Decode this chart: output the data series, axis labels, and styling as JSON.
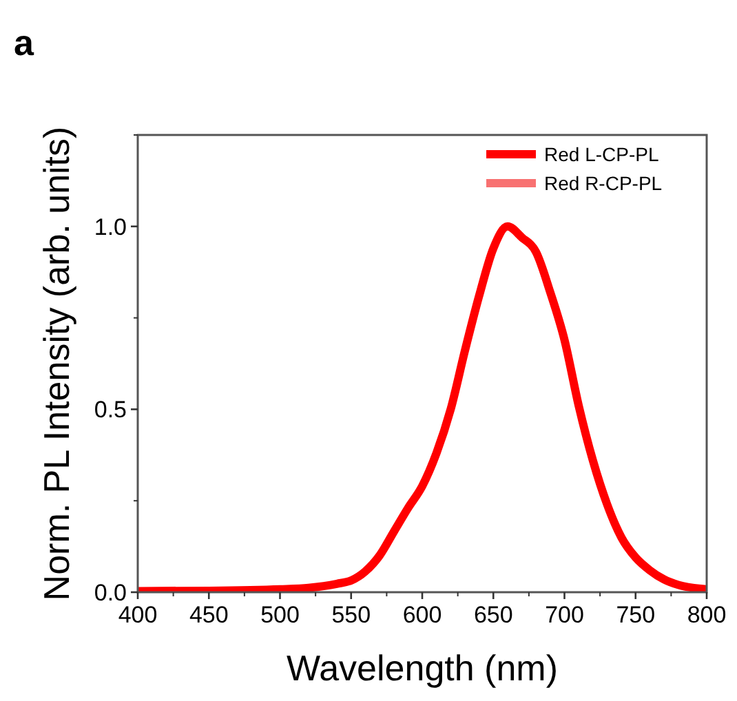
{
  "chart_data": {
    "type": "line",
    "title": "a",
    "xlabel": "Wavelength (nm)",
    "ylabel": "Norm. PL Intensity (arb. units)",
    "xlim": [
      400,
      800
    ],
    "xticks": [
      400,
      450,
      500,
      550,
      600,
      650,
      700,
      750,
      800
    ],
    "ylim": [
      0,
      1.25
    ],
    "yticks": [
      {
        "value": 0,
        "label": "0.0"
      },
      {
        "value": 0.5,
        "label": "0.5"
      },
      {
        "value": 1,
        "label": "1.0"
      }
    ],
    "x": [
      400,
      450,
      500,
      520,
      540,
      550,
      560,
      570,
      580,
      590,
      600,
      610,
      620,
      630,
      640,
      650,
      660,
      670,
      680,
      690,
      700,
      710,
      720,
      730,
      740,
      750,
      760,
      770,
      780,
      800
    ],
    "series": [
      {
        "name": "Red R-CP-PL",
        "color": "#f87171",
        "values": [
          null,
          null,
          null,
          null,
          null,
          null,
          null,
          null,
          null,
          null,
          null,
          null,
          null,
          null,
          null,
          null,
          null,
          null,
          null,
          null,
          null,
          null,
          null,
          null,
          null,
          null,
          null,
          null,
          null,
          null
        ]
      },
      {
        "name": "Red L-CP-PL",
        "color": "#ff0000",
        "values": [
          0.003,
          0.004,
          0.008,
          0.012,
          0.023,
          0.032,
          0.057,
          0.1,
          0.165,
          0.23,
          0.29,
          0.38,
          0.5,
          0.66,
          0.81,
          0.94,
          1.0,
          0.97,
          0.93,
          0.82,
          0.69,
          0.51,
          0.36,
          0.24,
          0.15,
          0.095,
          0.06,
          0.035,
          0.02,
          0.008
        ]
      }
    ],
    "legend": "top right",
    "grid": false,
    "line_style": "solid"
  }
}
